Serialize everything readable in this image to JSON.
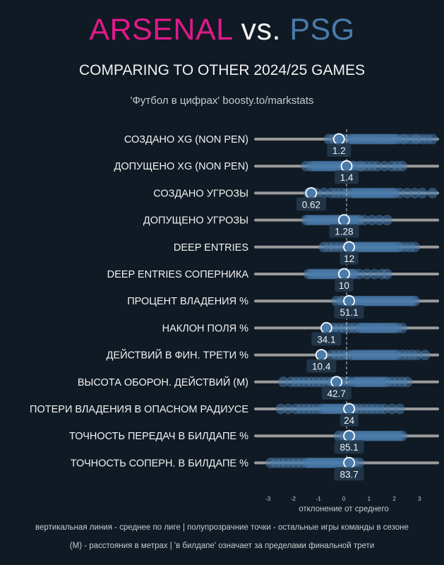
{
  "header": {
    "team_home": "ARSENAL",
    "vs": "vs.",
    "team_away": "PSG",
    "subtitle": "COMPARING TO OTHER 2024/25 GAMES",
    "credit": "'Футбол в цифрах' boosty.to/markstats"
  },
  "colors": {
    "background": "#101a24",
    "home": "#e0198a",
    "away": "#4a7bab",
    "track": "#9a9a9a",
    "highlight_point": "#4a7bab"
  },
  "chart_data": {
    "type": "scatter",
    "xlabel": "отклонение от среднего",
    "xlim": [
      -3.4,
      3.4
    ],
    "x_ticks": [
      -3,
      -2,
      -1,
      0,
      1,
      2,
      3
    ],
    "reference_line": 0,
    "rows": [
      {
        "label": "СОЗДАНО XG (NON PEN)",
        "value_label": "1.2",
        "x": -0.3,
        "others": [
          -0.7,
          -0.5,
          -0.3,
          -0.1,
          0.1,
          0.2,
          0.3,
          0.4,
          0.5,
          0.6,
          0.7,
          0.8,
          0.9,
          1.0,
          1.1,
          1.2,
          1.3,
          1.4,
          1.5,
          1.6,
          1.7,
          1.8,
          1.9,
          2.0,
          2.2,
          2.3,
          2.5,
          2.7,
          2.8,
          3.0,
          3.2,
          3.4
        ]
      },
      {
        "label": "ДОПУЩЕНО XG (NON PEN)",
        "value_label": "1.4",
        "x": 0.0,
        "others": [
          -1.6,
          -1.4,
          -1.3,
          -1.2,
          -1.1,
          -1.0,
          -0.9,
          -0.8,
          -0.7,
          -0.6,
          -0.5,
          -0.4,
          -0.3,
          -0.2,
          -0.1,
          0.1,
          0.2,
          0.3,
          0.5,
          0.6,
          0.8,
          1.0,
          1.2,
          1.5,
          1.8,
          2.0,
          2.2
        ]
      },
      {
        "label": "СОЗДАНО УГРОЗЫ",
        "value_label": "0.62",
        "x": -1.4,
        "others": [
          -1.5,
          -1.2,
          -0.9,
          -0.6,
          -0.4,
          -0.2,
          0.0,
          0.2,
          0.3,
          0.4,
          0.5,
          0.6,
          0.7,
          0.8,
          0.9,
          1.0,
          1.1,
          1.2,
          1.3,
          1.4,
          1.5,
          1.6,
          1.7,
          1.8,
          1.9,
          2.1,
          2.4,
          2.7,
          3.0,
          3.4
        ]
      },
      {
        "label": "ДОПУЩЕНО УГРОЗЫ",
        "value_label": "1.28",
        "x": -0.1,
        "others": [
          -1.6,
          -1.5,
          -1.4,
          -1.3,
          -1.2,
          -1.1,
          -1.0,
          -0.9,
          -0.8,
          -0.7,
          -0.6,
          -0.5,
          -0.4,
          -0.3,
          -0.2,
          0.0,
          0.1,
          0.2,
          0.3,
          0.4,
          0.5,
          0.7,
          1.0,
          1.3,
          1.6
        ]
      },
      {
        "label": "DEEP ENTRIES",
        "value_label": "12",
        "x": 0.1,
        "others": [
          -0.9,
          -0.7,
          -0.5,
          -0.3,
          -0.1,
          0.2,
          0.3,
          0.4,
          0.5,
          0.6,
          0.7,
          0.8,
          0.9,
          1.0,
          1.1,
          1.2,
          1.3,
          1.4,
          1.5,
          1.6,
          1.7,
          1.8,
          1.9,
          2.0,
          2.1,
          2.3,
          2.5,
          2.7
        ]
      },
      {
        "label": "DEEP ENTRIES СОПЕРНИКА",
        "value_label": "10",
        "x": -0.1,
        "others": [
          -1.5,
          -1.4,
          -1.3,
          -1.2,
          -1.1,
          -1.0,
          -0.9,
          -0.8,
          -0.7,
          -0.6,
          -0.5,
          -0.4,
          -0.3,
          -0.2,
          0.0,
          0.1,
          0.2,
          0.3,
          0.5,
          0.8,
          1.1,
          1.4,
          1.6
        ]
      },
      {
        "label": "ПРОЦЕНТ ВЛАДЕНИЯ %",
        "value_label": "51.1",
        "x": 0.1,
        "others": [
          -0.4,
          -0.2,
          -0.1,
          0.2,
          0.3,
          0.4,
          0.5,
          0.6,
          0.7,
          0.8,
          0.9,
          1.0,
          1.1,
          1.2,
          1.3,
          1.4,
          1.5,
          1.6,
          1.7,
          1.8,
          1.9,
          2.0,
          2.1,
          2.2,
          2.3,
          2.4,
          2.5,
          2.6,
          2.7
        ]
      },
      {
        "label": "НАКЛОН ПОЛЯ %",
        "value_label": "34.1",
        "x": -0.8,
        "others": [
          -0.7,
          -0.5,
          -0.3,
          -0.1,
          0.1,
          0.3,
          0.5,
          0.6,
          0.7,
          0.8,
          0.9,
          1.0,
          1.1,
          1.2,
          1.3,
          1.4,
          1.5,
          1.6,
          1.7,
          1.8,
          1.9,
          2.0,
          2.2
        ]
      },
      {
        "label": "ДЕЙСТВИЙ В ФИН. ТРЕТИ %",
        "value_label": "10.4",
        "x": -1.0,
        "others": [
          -0.9,
          -0.6,
          -0.4,
          -0.2,
          0.0,
          0.2,
          0.3,
          0.4,
          0.5,
          0.6,
          0.7,
          0.8,
          0.9,
          1.0,
          1.1,
          1.2,
          1.3,
          1.4,
          1.5,
          1.6,
          1.7,
          1.8,
          1.9,
          2.0,
          2.2,
          2.4,
          2.6,
          2.8,
          3.1
        ]
      },
      {
        "label": "ВЫСОТА ОБОРОН. ДЕЙСТВИЙ (М)",
        "value_label": "42.7",
        "x": -0.4,
        "others": [
          -2.5,
          -2.2,
          -2.0,
          -1.8,
          -1.6,
          -1.4,
          -1.2,
          -1.0,
          -0.8,
          -0.6,
          -0.5,
          -0.3,
          -0.2,
          0.0,
          0.1,
          0.3,
          0.4,
          0.5,
          0.6,
          0.7,
          0.8,
          0.9,
          1.0,
          1.1,
          1.2,
          1.3,
          1.4,
          1.5,
          1.6,
          1.8,
          2.0,
          2.2,
          2.4
        ]
      },
      {
        "label": "ПОТЕРИ ВЛАДЕНИЯ В ОПАСНОМ РАДИУСЕ",
        "value_label": "24",
        "x": 0.1,
        "others": [
          -2.6,
          -2.3,
          -2.0,
          -1.8,
          -1.6,
          -1.4,
          -1.2,
          -1.0,
          -0.9,
          -0.8,
          -0.7,
          -0.6,
          -0.5,
          -0.4,
          -0.3,
          -0.2,
          -0.1,
          0.0,
          0.2,
          0.3,
          0.5,
          0.7,
          0.9,
          1.1,
          1.3,
          1.5,
          1.8,
          2.1
        ]
      },
      {
        "label": "ТОЧНОСТЬ ПЕРЕДАЧ В БИЛДАПЕ %",
        "value_label": "85.1",
        "x": 0.1,
        "others": [
          -0.3,
          -0.1,
          0.0,
          0.2,
          0.3,
          0.4,
          0.5,
          0.6,
          0.7,
          0.8,
          0.9,
          1.0,
          1.1,
          1.2,
          1.3,
          1.4,
          1.5,
          1.6,
          1.7,
          1.8,
          1.9,
          2.0,
          2.1,
          2.2
        ]
      },
      {
        "label": "ТОЧНОСТЬ СОПЕРН. В БИЛДАПЕ %",
        "value_label": "83.7",
        "x": 0.1,
        "others": [
          -3.0,
          -2.8,
          -2.6,
          -2.4,
          -2.2,
          -2.0,
          -1.8,
          -1.6,
          -1.5,
          -1.4,
          -1.3,
          -1.2,
          -1.1,
          -1.0,
          -0.9,
          -0.8,
          -0.7,
          -0.6,
          -0.5,
          -0.4,
          -0.3,
          -0.2,
          -0.1,
          0.0,
          0.2,
          0.3,
          0.5
        ]
      }
    ]
  },
  "footer": {
    "line1": "вертикальная линия - среднее по лиге  |  полупрозрачние точки - остальные игры команды в сезоне",
    "line2": "(М) - расстояния в метрах | 'в билдапе' означает за пределами финальной трети"
  }
}
